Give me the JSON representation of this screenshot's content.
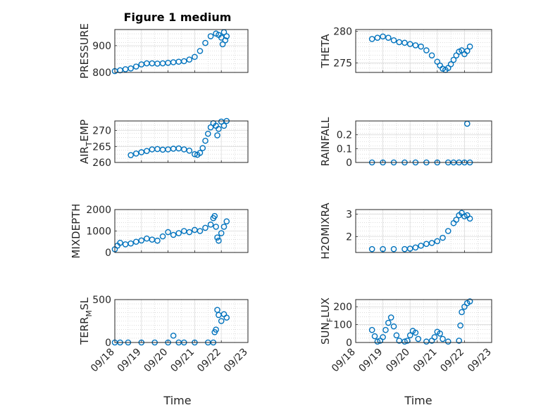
{
  "figure_title": "Figure 1 medium",
  "colors": {
    "marker": "#0072BD",
    "axis": "#262626",
    "grid": "#c8c8c8"
  },
  "chart_data": [
    {
      "id": "pressure",
      "type": "scatter",
      "title": "Figure 1 medium",
      "ylabel": "PRESSURE",
      "ylabel_sub": "",
      "ylim": [
        800,
        960
      ],
      "yticks": [
        800,
        900
      ],
      "ytick_labels": [
        "800",
        "900"
      ],
      "xlim": [
        0,
        5
      ],
      "show_xticklabels": false,
      "x": [
        0,
        0.2,
        0.4,
        0.6,
        0.8,
        1.0,
        1.2,
        1.4,
        1.6,
        1.8,
        2.0,
        2.2,
        2.4,
        2.6,
        2.8,
        3.0,
        3.2,
        3.4,
        3.6,
        3.8,
        3.9,
        4.0,
        4.05,
        4.1,
        4.15,
        4.2
      ],
      "y": [
        805,
        808,
        812,
        815,
        822,
        830,
        834,
        834,
        833,
        834,
        836,
        838,
        840,
        842,
        848,
        858,
        880,
        910,
        935,
        945,
        940,
        930,
        905,
        950,
        920,
        935
      ]
    },
    {
      "id": "theta",
      "type": "scatter",
      "ylabel": "THETA",
      "ylabel_sub": "",
      "ylim": [
        273.5,
        280.3
      ],
      "yticks": [
        275,
        280
      ],
      "ytick_labels": [
        "275",
        "280"
      ],
      "xlim": [
        0,
        5
      ],
      "show_xticklabels": false,
      "x": [
        0.6,
        0.8,
        1.0,
        1.2,
        1.4,
        1.6,
        1.8,
        2.0,
        2.2,
        2.4,
        2.6,
        2.8,
        3.0,
        3.1,
        3.2,
        3.3,
        3.4,
        3.5,
        3.6,
        3.7,
        3.8,
        3.9,
        4.0,
        4.1,
        4.2
      ],
      "y": [
        278.8,
        279.0,
        279.2,
        279.0,
        278.6,
        278.3,
        278.2,
        278.0,
        277.8,
        277.6,
        277.0,
        276.2,
        275.2,
        274.6,
        274.1,
        273.9,
        274.2,
        274.8,
        275.5,
        276.2,
        276.8,
        277.0,
        276.4,
        276.9,
        277.6
      ]
    },
    {
      "id": "air_temp",
      "type": "scatter",
      "ylabel": "AIR",
      "ylabel_sub": "T",
      "ylabel_rest": "EMP",
      "ylim": [
        260,
        273
      ],
      "yticks": [
        260,
        265,
        270
      ],
      "ytick_labels": [
        "260",
        "265",
        "270"
      ],
      "xlim": [
        0,
        5
      ],
      "show_xticklabels": false,
      "x": [
        0.6,
        0.8,
        1.0,
        1.2,
        1.4,
        1.6,
        1.8,
        2.0,
        2.2,
        2.4,
        2.6,
        2.8,
        3.0,
        3.1,
        3.2,
        3.3,
        3.4,
        3.5,
        3.6,
        3.7,
        3.8,
        3.85,
        3.9,
        4.0,
        4.1,
        4.2
      ],
      "y": [
        262.3,
        262.8,
        263.2,
        263.6,
        264.1,
        264.2,
        264.0,
        264.1,
        264.3,
        264.4,
        264.1,
        263.7,
        262.6,
        262.4,
        263.0,
        264.5,
        266.8,
        269.0,
        271.0,
        272.3,
        271.5,
        268.5,
        270.5,
        272.8,
        271.5,
        273.0
      ]
    },
    {
      "id": "rainfall",
      "type": "scatter",
      "ylabel": "RAINFALL",
      "ylabel_sub": "",
      "ylim": [
        0,
        0.3
      ],
      "yticks": [
        0,
        0.1,
        0.2
      ],
      "ytick_labels": [
        "0",
        "0.1",
        "0.2"
      ],
      "xlim": [
        0,
        5
      ],
      "show_xticklabels": false,
      "x": [
        0.6,
        1.0,
        1.4,
        1.8,
        2.2,
        2.6,
        3.0,
        3.4,
        3.6,
        3.8,
        4.0,
        4.1,
        4.2
      ],
      "y": [
        0,
        0,
        0,
        0,
        0,
        0,
        0,
        0,
        0,
        0,
        0,
        0.28,
        0
      ]
    },
    {
      "id": "mixdepth",
      "type": "scatter",
      "ylabel": "MIXDEPTH",
      "ylabel_sub": "",
      "ylim": [
        0,
        2000
      ],
      "yticks": [
        0,
        1000,
        2000
      ],
      "ytick_labels": [
        "0",
        "1000",
        "2000"
      ],
      "xlim": [
        0,
        5
      ],
      "show_xticklabels": false,
      "x": [
        0,
        0.1,
        0.2,
        0.4,
        0.6,
        0.8,
        1.0,
        1.2,
        1.4,
        1.6,
        1.8,
        2.0,
        2.2,
        2.4,
        2.6,
        2.8,
        3.0,
        3.2,
        3.4,
        3.6,
        3.7,
        3.75,
        3.8,
        3.85,
        3.9,
        4.0,
        4.1,
        4.2
      ],
      "y": [
        150,
        320,
        450,
        380,
        420,
        500,
        560,
        650,
        600,
        550,
        750,
        950,
        820,
        900,
        1000,
        950,
        1050,
        1000,
        1150,
        1300,
        1600,
        1700,
        1200,
        700,
        550,
        900,
        1200,
        1450
      ]
    },
    {
      "id": "h2omixra",
      "type": "scatter",
      "ylabel": "H2OMIXRA",
      "ylabel_sub": "",
      "ylim": [
        1.3,
        3.2
      ],
      "yticks": [
        2,
        3
      ],
      "ytick_labels": [
        "2",
        "3"
      ],
      "xlim": [
        0,
        5
      ],
      "show_xticklabels": false,
      "x": [
        0.6,
        1.0,
        1.4,
        1.8,
        2.0,
        2.2,
        2.4,
        2.6,
        2.8,
        3.0,
        3.2,
        3.4,
        3.6,
        3.7,
        3.8,
        3.9,
        4.0,
        4.1,
        4.2
      ],
      "y": [
        1.45,
        1.45,
        1.45,
        1.45,
        1.47,
        1.52,
        1.6,
        1.68,
        1.72,
        1.8,
        1.95,
        2.25,
        2.6,
        2.75,
        2.95,
        3.05,
        2.9,
        2.95,
        2.8
      ]
    },
    {
      "id": "terr_msl",
      "type": "scatter",
      "ylabel": "TERR",
      "ylabel_sub": "M",
      "ylabel_rest": "SL",
      "ylim": [
        0,
        500
      ],
      "yticks": [
        0,
        500
      ],
      "ytick_labels": [
        "0",
        "500"
      ],
      "xlim": [
        0,
        5
      ],
      "show_xticklabels": true,
      "x": [
        0,
        0.2,
        0.5,
        1.0,
        1.5,
        2.0,
        2.2,
        2.4,
        2.6,
        3.0,
        3.5,
        3.7,
        3.75,
        3.8,
        3.85,
        3.9,
        4.0,
        4.1,
        4.2
      ],
      "y": [
        0,
        0,
        0,
        0,
        0,
        0,
        80,
        0,
        0,
        0,
        0,
        0,
        120,
        150,
        380,
        320,
        250,
        330,
        290
      ]
    },
    {
      "id": "sun_flux",
      "type": "scatter",
      "ylabel": "SUN",
      "ylabel_sub": "F",
      "ylabel_rest": "LUX",
      "ylim": [
        0,
        240
      ],
      "yticks": [
        0,
        100,
        200
      ],
      "ytick_labels": [
        "0",
        "100",
        "200"
      ],
      "xlim": [
        0,
        5
      ],
      "show_xticklabels": true,
      "x": [
        0.6,
        0.7,
        0.8,
        0.9,
        1.0,
        1.1,
        1.2,
        1.3,
        1.4,
        1.5,
        1.6,
        1.8,
        1.9,
        2.0,
        2.1,
        2.2,
        2.3,
        2.6,
        2.8,
        2.9,
        3.0,
        3.1,
        3.2,
        3.4,
        3.8,
        3.85,
        3.9,
        4.0,
        4.1,
        4.2
      ],
      "y": [
        70,
        35,
        5,
        10,
        30,
        70,
        110,
        140,
        90,
        40,
        10,
        5,
        10,
        40,
        65,
        55,
        20,
        5,
        10,
        30,
        60,
        50,
        20,
        5,
        10,
        95,
        170,
        200,
        220,
        230
      ]
    }
  ],
  "x_tick_labels": [
    "09/18",
    "09/19",
    "09/20",
    "09/21",
    "09/22",
    "09/23"
  ],
  "x_label": "Time"
}
